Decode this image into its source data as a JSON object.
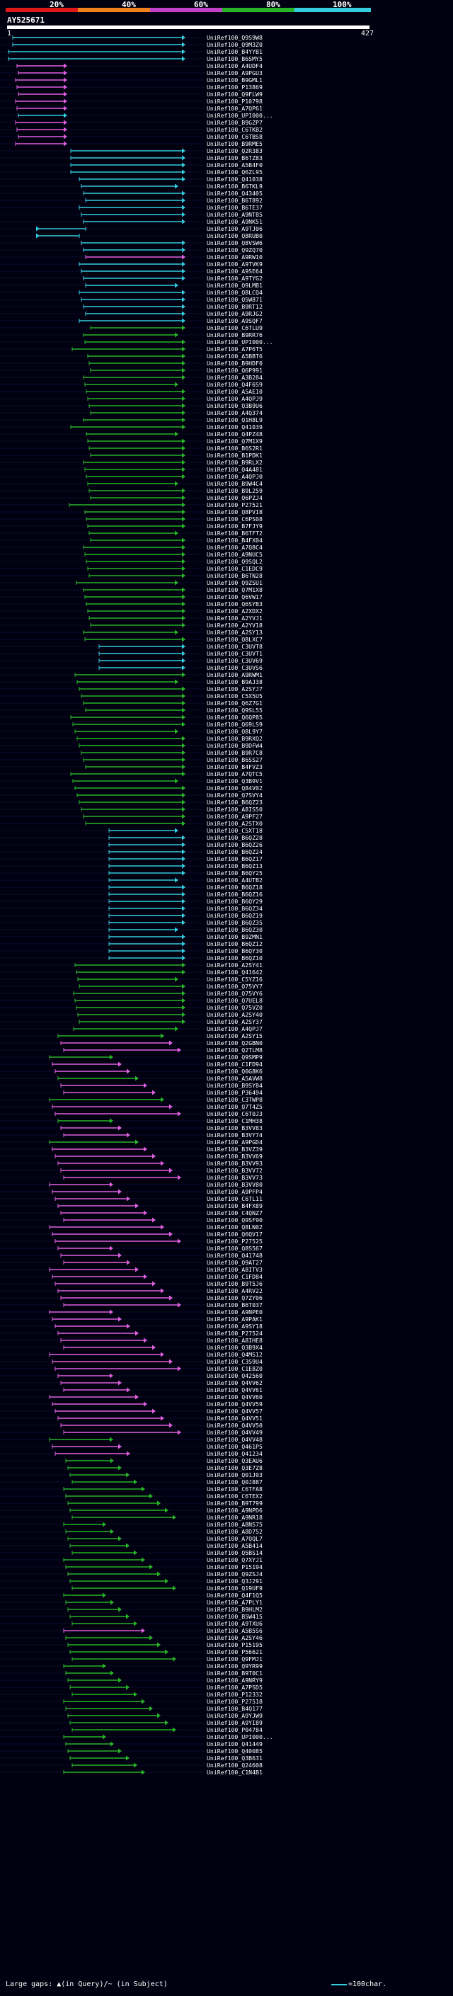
{
  "title": "AY525671",
  "query_range": {
    "start": "1",
    "end": "427"
  },
  "identity_scale": [
    "20%",
    "40%",
    "60%",
    "80%",
    "100%"
  ],
  "colors": {
    "red": "#e01818",
    "orange": "#f08018",
    "purple": "#c040c8",
    "green": "#28b428",
    "cyan": "#33ccdd",
    "magenta": "#e060e0",
    "background": "#000010",
    "grid": "#1a1a4a"
  },
  "footer": {
    "gap_legend": "Large gaps: ▲(in Query)/~ (in Subject)",
    "scale_legend": "=100char."
  },
  "hits": [
    "UniRef100_Q9S9W8",
    "UniRef100_Q9M3Z0",
    "UniRef100_B4YYB1",
    "UniRef100_B6SMY5",
    "UniRef100_A4UDF4",
    "UniRef100_A9PGU3",
    "UniRef100_B9GML1",
    "UniRef100_P13869",
    "UniRef100_Q9FLW9",
    "UniRef100_P10798",
    "UniRef100_A7QP61",
    "UniRef100_UPI000...",
    "UniRef100_B9GZP7",
    "UniRef100_C6TKB2",
    "UniRef100_C6TBS8",
    "UniRef100_B9RME5",
    "UniRef100_Q2R383",
    "UniRef100_B6TZ83",
    "UniRef100_A5B4F0",
    "UniRef100_Q6ZL95",
    "UniRef100_Q41038",
    "UniRef100_B6TKL9",
    "UniRef100_Q43405",
    "UniRef100_B6T892",
    "UniRef100_B6TE37",
    "UniRef100_A9NT85",
    "UniRef100_A9NK51",
    "UniRef100_A9TJ06",
    "UniRef100_Q8RUB0",
    "UniRef100_Q8VSW6",
    "UniRef100_Q9ZQ70",
    "UniRef100_A9RW10",
    "UniRef100_A9TVK9",
    "UniRef100_A9SE64",
    "UniRef100_A9TYG2",
    "UniRef100_Q9LMB1",
    "UniRef100_Q8LCQ4",
    "UniRef100_Q5W871",
    "UniRef100_B9RT12",
    "UniRef100_A9RJG2",
    "UniRef100_A9SQF7",
    "UniRef100_C6TLU9",
    "UniRef100_B9RR76",
    "UniRef100_UPI000...",
    "UniRef100_A7P6T5",
    "UniRef100_A5BBT6",
    "UniRef100_B9HDF0",
    "UniRef100_Q6P991",
    "UniRef100_A3B284",
    "UniRef100_Q4F6S9",
    "UniRef100_A5AE10",
    "UniRef100_A4QPJ9",
    "UniRef100_Q3B9U6",
    "UniRef100_A4Q374",
    "UniRef100_Q1H8L9",
    "UniRef100_Q41039",
    "UniRef100_Q4PZ48",
    "UniRef100_Q7M1X9",
    "UniRef100_B6S2R1",
    "UniRef100_B1PDK1",
    "UniRef100_B9RLX2",
    "UniRef100_Q4A481",
    "UniRef100_A4QPJ0",
    "UniRef100_B9W4C4",
    "UniRef100_B9L259",
    "UniRef100_Q6PZJ4",
    "UniRef100_P27521",
    "UniRef100_Q8PVI8",
    "UniRef100_C6PS08",
    "UniRef100_B7FJY9",
    "UniRef100_B6TFT2",
    "UniRef100_B4FX04",
    "UniRef100_A7Q8C4",
    "UniRef100_A9NUC5",
    "UniRef100_Q9SQL2",
    "UniRef100_C1EDC9",
    "UniRef100_B6TN28",
    "UniRef100_Q9ZSU1",
    "UniRef100_Q7M1X8",
    "UniRef100_Q6VW17",
    "UniRef100_Q6SYB3",
    "UniRef100_A2XDX2",
    "UniRef100_A2YVJ1",
    "UniRef100_A2YV18",
    "UniRef100_A2SY13",
    "UniRef100_Q8LXC7",
    "UniRef100_C3UVT8",
    "UniRef100_C3UVT1",
    "UniRef100_C3UV69",
    "UniRef100_C3UVS6",
    "UniRef100_A9RWM1",
    "UniRef100_B9AJ38",
    "UniRef100_A2SYJ7",
    "UniRef100_C5X5U5",
    "UniRef100_Q6Z7G1",
    "UniRef100_Q9SL55",
    "UniRef100_Q6QP85",
    "UniRef100_Q69LS9",
    "UniRef100_Q8L9Y7",
    "UniRef100_B9RXQ2",
    "UniRef100_B9DFW4",
    "UniRef100_B9R7C8",
    "UniRef100_B6SS27",
    "UniRef100_B4FVZ3",
    "UniRef100_A7QTC5",
    "UniRef100_Q3B9V1",
    "UniRef100_Q84V02",
    "UniRef100_Q7SVY4",
    "UniRef100_B6QZ23",
    "UniRef100_A8IS50",
    "UniRef100_A9PF27",
    "UniRef100_A2STX0",
    "UniRef100_C5XT18",
    "UniRef100_B6QZ28",
    "UniRef100_B6QZ26",
    "UniRef100_B6QZ24",
    "UniRef100_B6QZ17",
    "UniRef100_B6QZ13",
    "UniRef100_B6QY25",
    "UniRef100_A4UTB2",
    "UniRef100_B6QZ18",
    "UniRef100_B6QZ16",
    "UniRef100_B6QY29",
    "UniRef100_B6QZ34",
    "UniRef100_B6QZ19",
    "UniRef100_B6QZ35",
    "UniRef100_B6QZ30",
    "UniRef100_B9ZMN1",
    "UniRef100_B6QZ12",
    "UniRef100_B6QY30",
    "UniRef100_B6QZ10",
    "UniRef100_A2SY41",
    "UniRef100_Q41642",
    "UniRef100_C5YZ16",
    "UniRef100_Q75VY7",
    "UniRef100_Q75VY6",
    "UniRef100_Q7UEL8",
    "UniRef100_Q75VZ0",
    "UniRef100_A2SY40",
    "UniRef100_A2SY37",
    "UniRef100_A4QPJ7",
    "UniRef100_A2SY15",
    "UniRef100_Q2GBN0",
    "UniRef100_Q2TLM8",
    "UniRef100_Q9SMP9",
    "UniRef100_C1FD94",
    "UniRef100_Q0G8K6",
    "UniRef100_A5AVW8",
    "UniRef100_B9SY84",
    "UniRef100_P36494",
    "UniRef100_C3TWP8",
    "UniRef100_Q7T4Z5",
    "UniRef100_C6T0J3",
    "UniRef100_C1MH38",
    "UniRef100_B3VV83",
    "UniRef100_B3VY74",
    "UniRef100_A9PGD4",
    "UniRef100_B3VZ39",
    "UniRef100_B3VV69",
    "UniRef100_B3VV93",
    "UniRef100_B3VV72",
    "UniRef100_B3VV73",
    "UniRef100_B3VV80",
    "UniRef100_A9PFP4",
    "UniRef100_C6TL11",
    "UniRef100_B4FX89",
    "UniRef100_C4QNZ7",
    "UniRef100_Q9SF90",
    "UniRef100_Q8LN02",
    "UniRef100_Q6QV17",
    "UniRef100_P27525",
    "UniRef100_Q8S567",
    "UniRef100_Q41748",
    "UniRef100_Q9AT27",
    "UniRef100_A8ITV3",
    "UniRef100_C1FD84",
    "UniRef100_B9T5J6",
    "UniRef100_A4RV22",
    "UniRef100_Q7ZY06",
    "UniRef100_B6T037",
    "UniRef100_A9NPE0",
    "UniRef100_A9PAK1",
    "UniRef100_A9SY18",
    "UniRef100_P27524",
    "UniRef100_A8IHE8",
    "UniRef100_Q3B9X4",
    "UniRef100_Q4MS12",
    "UniRef100_C3S9U4",
    "UniRef100_C1E8Z0",
    "UniRef100_Q42560",
    "UniRef100_Q4VV62",
    "UniRef100_Q4VV61",
    "UniRef100_Q4VV60",
    "UniRef100_Q4VV59",
    "UniRef100_Q4VV57",
    "UniRef100_Q4VV51",
    "UniRef100_Q4VV50",
    "UniRef100_Q4VV49",
    "UniRef100_Q4VV48",
    "UniRef100_Q461P5",
    "UniRef100_Q41234",
    "UniRef100_Q3EAU6",
    "UniRef100_Q3E7Z8",
    "UniRef100_Q01J03",
    "UniRef100_Q0J887",
    "UniRef100_C6TFA8",
    "UniRef100_C6TEX2",
    "UniRef100_B9T799",
    "UniRef100_A9NPD6",
    "UniRef100_A9NR18",
    "UniRef100_A8NS75",
    "UniRef100_A8D752",
    "UniRef100_A7QQL7",
    "UniRef100_A5B414",
    "UniRef100_Q5BS14",
    "UniRef100_Q7XYJ1",
    "UniRef100_P15194",
    "UniRef100_Q9ZSJ4",
    "UniRef100_Q3J291",
    "UniRef100_Q19UF9",
    "UniRef100_Q4F1Q5",
    "UniRef100_A7PLY1",
    "UniRef100_B9HLM2",
    "UniRef100_B5W415",
    "UniRef100_A9TXU6",
    "UniRef100_A5B5S6",
    "UniRef100_A2SY46",
    "UniRef100_P15195",
    "UniRef100_P56621",
    "UniRef100_Q9FMJ1",
    "UniRef100_Q9YR99",
    "UniRef100_B9T0C1",
    "UniRef100_A9NRY9",
    "UniRef100_A7PSD5",
    "UniRef100_P12332",
    "UniRef100_P27518",
    "UniRef100_B4Q177",
    "UniRef100_A9YJW9",
    "UniRef100_A9YI89",
    "UniRef100_P04784",
    "UniRef100_UPI000...",
    "UniRef100_Q41449",
    "UniRef100_Q40085",
    "UniRef100_Q3B631",
    "UniRef100_Q24608",
    "UniRef100_C1N4B1"
  ]
}
